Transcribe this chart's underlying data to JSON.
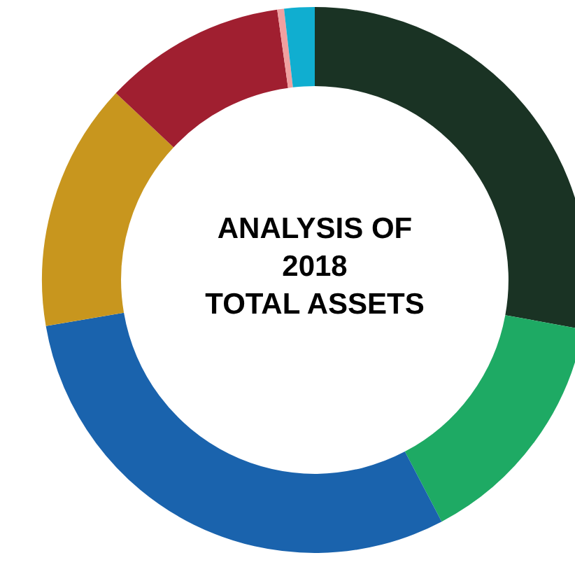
{
  "chart_data": {
    "type": "donut",
    "title": "ANALYSIS OF\n2018\nTOTAL ASSETS",
    "categories": [
      null,
      null,
      null,
      null,
      null,
      null,
      null
    ],
    "values": [
      27.9,
      14.4,
      30,
      14.7,
      10.8,
      0.4,
      1.8
    ],
    "colors": [
      "#1a3324",
      "#1eaa64",
      "#1a63ad",
      "#c8961e",
      "#a01f30",
      "#f0a0a0",
      "#10aed0"
    ],
    "legend": false
  }
}
